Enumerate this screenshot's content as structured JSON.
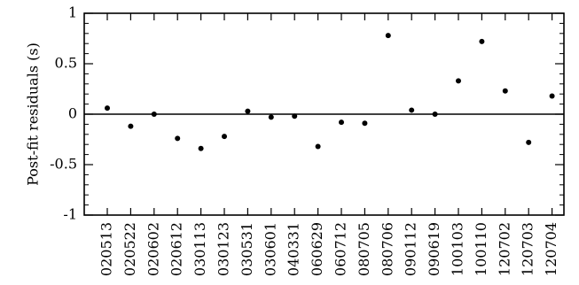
{
  "chart_data": {
    "type": "scatter",
    "title": "",
    "xlabel": "",
    "ylabel": "Post-fit residuals (s)",
    "ylim": [
      -1,
      1
    ],
    "yticks": [
      "1",
      "0.5",
      "0",
      "-0.5",
      "-1"
    ],
    "ytick_values": [
      1,
      0.5,
      0,
      -0.5,
      -1
    ],
    "reference_line": 0,
    "grid": false,
    "categories": [
      "020513",
      "020522",
      "020602",
      "020612",
      "030113",
      "030123",
      "030531",
      "030601",
      "040331",
      "060629",
      "060712",
      "080705",
      "080706",
      "090112",
      "090619",
      "100103",
      "100110",
      "120702",
      "120703",
      "120704"
    ],
    "values": [
      0.06,
      -0.12,
      0.0,
      -0.24,
      -0.34,
      -0.22,
      0.03,
      -0.03,
      -0.02,
      -0.32,
      -0.08,
      -0.09,
      0.78,
      0.04,
      0.0,
      0.33,
      0.72,
      0.23,
      -0.28,
      0.18
    ]
  }
}
